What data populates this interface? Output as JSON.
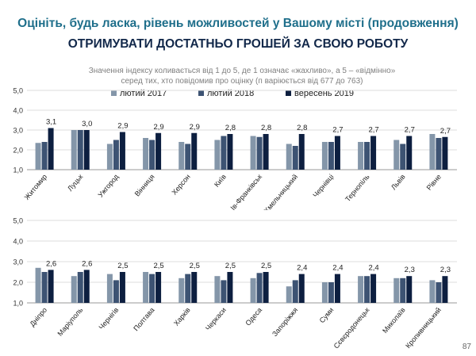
{
  "header": {
    "title": "Оцініть, будь ласка, рівень можливостей у Вашому місті (продовження)",
    "subtitle": "ОТРИМУВАТИ ДОСТАТНЬО ГРОШЕЙ ЗА СВОЮ РОБОТУ",
    "note_line1": "Значення індексу коливається від 1 до 5, де 1 означає «жахливо», а 5 – «відмінно»",
    "note_line2": "серед тих, хто повідомив про оцінку (п варіюється від 677 до 763)"
  },
  "page_number": "87",
  "colors": {
    "s2017": "#8496a9",
    "s2018": "#3d5373",
    "s2019": "#0d1f40"
  },
  "chart_data": [
    {
      "type": "bar",
      "ylim": [
        1,
        5
      ],
      "yticks": [
        "1,0",
        "2,0",
        "3,0",
        "4,0",
        "5,0"
      ],
      "categories": [
        "Житомир",
        "Луцьк",
        "Ужгород",
        "Вінниця",
        "Херсон",
        "Київ",
        "Ів-Франківськ",
        "Хмельницький",
        "Чернівці",
        "Тернопіль",
        "Львів",
        "Рівне"
      ],
      "series": [
        {
          "name": "лютий 2017",
          "values": [
            2.35,
            3.0,
            2.3,
            2.6,
            2.4,
            2.5,
            2.7,
            2.3,
            2.4,
            2.4,
            2.5,
            2.8
          ]
        },
        {
          "name": "лютий 2018",
          "values": [
            2.4,
            3.0,
            2.5,
            2.5,
            2.3,
            2.7,
            2.65,
            2.2,
            2.4,
            2.4,
            2.3,
            2.6
          ]
        },
        {
          "name": "вересень 2019",
          "values": [
            3.1,
            3.0,
            2.9,
            2.85,
            2.85,
            2.8,
            2.8,
            2.8,
            2.7,
            2.7,
            2.7,
            2.65
          ]
        }
      ],
      "data_labels": [
        "3,1",
        "3,0",
        "2,9",
        "2,9",
        "2,9",
        "2,8",
        "2,8",
        "2,8",
        "2,7",
        "2,7",
        "2,7",
        "2,7"
      ]
    },
    {
      "type": "bar",
      "ylim": [
        1,
        5
      ],
      "yticks": [
        "1,0",
        "2,0",
        "3,0",
        "4,0",
        "5,0"
      ],
      "categories": [
        "Дніпро",
        "Маріуполь",
        "Чернігів",
        "Полтава",
        "Харків",
        "Черкаси",
        "Одеса",
        "Запоріжжя",
        "Суми",
        "Сєвєродонецьк",
        "Миколаїв",
        "Кропивницький"
      ],
      "series": [
        {
          "name": "лютий 2017",
          "values": [
            2.7,
            2.3,
            2.4,
            2.5,
            2.2,
            2.3,
            2.2,
            1.8,
            2.0,
            2.3,
            2.2,
            2.1
          ]
        },
        {
          "name": "лютий 2018",
          "values": [
            2.5,
            2.5,
            2.1,
            2.4,
            2.4,
            2.1,
            2.45,
            2.1,
            2.0,
            2.3,
            2.2,
            2.0
          ]
        },
        {
          "name": "вересень 2019",
          "values": [
            2.6,
            2.6,
            2.5,
            2.5,
            2.5,
            2.5,
            2.5,
            2.4,
            2.4,
            2.4,
            2.3,
            2.3
          ]
        }
      ],
      "data_labels": [
        "2,6",
        "2,6",
        "2,5",
        "2,5",
        "2,5",
        "2,5",
        "2,5",
        "2,4",
        "2,4",
        "2,4",
        "2,3",
        "2,3"
      ]
    }
  ]
}
